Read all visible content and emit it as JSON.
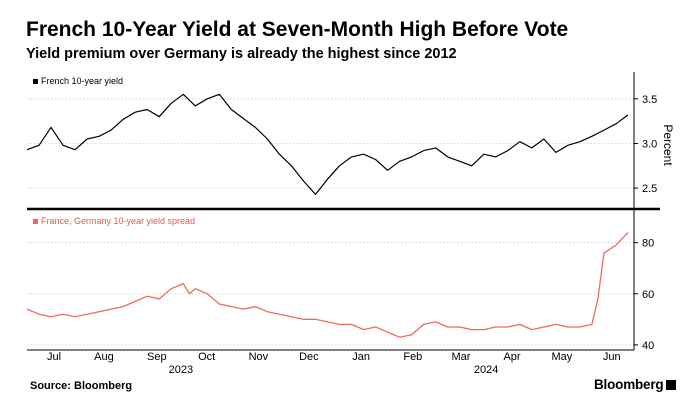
{
  "header": {
    "title": "French 10-Year Yield at Seven-Month High Before Vote",
    "subtitle": "Yield premium over Germany is already the highest since 2012"
  },
  "footer": {
    "source": "Source: Bloomberg",
    "brand": "Bloomberg"
  },
  "colors": {
    "yield_line": "#000000",
    "spread_line": "#f0695a",
    "grid": "#cccccc"
  },
  "chart_data": [
    {
      "type": "line",
      "title": "",
      "legend": "French 10-year yield",
      "legend_position": "top-left",
      "ylabel": "Percent",
      "ylim": [
        2.3,
        3.8
      ],
      "yticks": [
        "2.5",
        "3.0",
        "3.5"
      ],
      "ytick_values": [
        2.5,
        3.0,
        3.5
      ],
      "grid": true,
      "x_domain": [
        0,
        100
      ],
      "x": [
        0,
        2,
        4,
        6,
        8,
        10,
        12,
        14,
        16,
        18,
        20,
        22,
        24,
        26,
        28,
        30,
        32,
        34,
        36,
        38,
        40,
        42,
        44,
        46,
        48,
        50,
        52,
        54,
        56,
        58,
        60,
        62,
        64,
        66,
        68,
        70,
        72,
        74,
        76,
        78,
        80,
        82,
        84,
        86,
        88,
        90,
        92,
        94,
        96,
        98,
        100
      ],
      "values": [
        2.93,
        2.98,
        3.18,
        2.98,
        2.93,
        3.05,
        3.08,
        3.15,
        3.27,
        3.35,
        3.38,
        3.3,
        3.45,
        3.55,
        3.42,
        3.5,
        3.55,
        3.38,
        3.28,
        3.18,
        3.05,
        2.88,
        2.75,
        2.58,
        2.43,
        2.6,
        2.75,
        2.85,
        2.88,
        2.82,
        2.7,
        2.8,
        2.85,
        2.92,
        2.95,
        2.85,
        2.8,
        2.75,
        2.88,
        2.85,
        2.92,
        3.02,
        2.95,
        3.05,
        2.9,
        2.98,
        3.02,
        3.08,
        3.15,
        3.22,
        3.32
      ]
    },
    {
      "type": "line",
      "title": "",
      "legend": "France, Germany 10-year yield spread",
      "legend_position": "top-left",
      "ylim": [
        38,
        92
      ],
      "yticks": [
        "40",
        "60",
        "80"
      ],
      "ytick_values": [
        40,
        60,
        80
      ],
      "grid": true,
      "x_domain": [
        0,
        100
      ],
      "x": [
        0,
        2,
        4,
        6,
        8,
        10,
        12,
        14,
        16,
        18,
        20,
        22,
        24,
        26,
        27,
        28,
        30,
        32,
        34,
        36,
        38,
        40,
        42,
        44,
        46,
        48,
        50,
        52,
        54,
        56,
        58,
        60,
        62,
        64,
        66,
        68,
        70,
        72,
        74,
        76,
        78,
        80,
        82,
        84,
        86,
        88,
        90,
        92,
        94,
        95,
        96,
        98,
        100
      ],
      "values": [
        54,
        52,
        51,
        52,
        51,
        52,
        53,
        54,
        55,
        57,
        59,
        58,
        62,
        64,
        60,
        62,
        60,
        56,
        55,
        54,
        55,
        53,
        52,
        51,
        50,
        50,
        49,
        48,
        48,
        46,
        47,
        45,
        43,
        44,
        48,
        49,
        47,
        47,
        46,
        46,
        47,
        47,
        48,
        46,
        47,
        48,
        47,
        47,
        48,
        58,
        76,
        79,
        84
      ]
    }
  ],
  "x_axis": {
    "months": [
      "Jul",
      "Aug",
      "Sep",
      "Oct",
      "Nov",
      "Dec",
      "Jan",
      "Feb",
      "Mar",
      "Apr",
      "May",
      "Jun"
    ],
    "month_positions": [
      4.5,
      12.8,
      21.6,
      29.9,
      38.5,
      46.9,
      55.6,
      64.2,
      72.2,
      80.7,
      89.0,
      97.3
    ],
    "years": [
      {
        "label": "2023",
        "position": 25.6
      },
      {
        "label": "2024",
        "position": 76.4
      }
    ]
  }
}
